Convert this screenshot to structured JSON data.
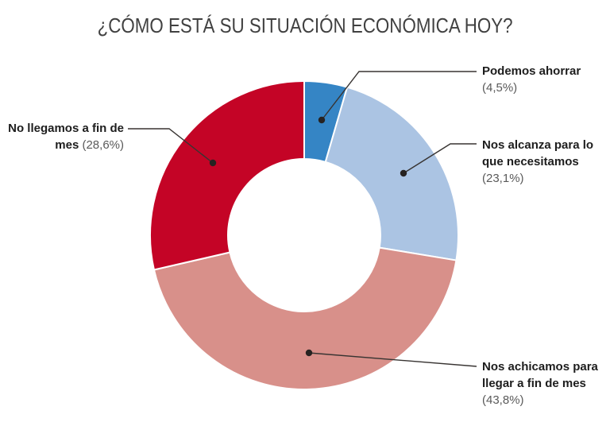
{
  "title": "¿CÓMO ESTÁ SU SITUACIÓN ECONÓMICA HOY?",
  "chart_data": {
    "type": "pie",
    "subtype": "donut",
    "title": "¿CÓMO ESTÁ SU SITUACIÓN ECONÓMICA HOY?",
    "direction": "clockwise",
    "start_angle_deg": 0,
    "inner_radius_ratio": 0.495,
    "legend_position": "callout-labels",
    "units": "%",
    "slices": [
      {
        "label": "Podemos ahorrar",
        "value": 4.5,
        "value_label": "(4,5%)",
        "color": "#3585c5"
      },
      {
        "label": "Nos alcanza para lo que necesitamos",
        "value": 23.1,
        "value_label": "(23,1%)",
        "color": "#abc4e3"
      },
      {
        "label": "Nos achicamos para llegar a fin de mes",
        "value": 43.8,
        "value_label": "(43,8%)",
        "color": "#d8908a"
      },
      {
        "label": "No llegamos a fin de mes",
        "value": 28.6,
        "value_label": "(28,6%)",
        "color": "#c40426"
      }
    ]
  },
  "colors": {
    "background": "#ffffff",
    "title_text": "#414141",
    "label_text": "#1d1d1d",
    "pct_text": "#5a5a5a",
    "leader_line": "#383432",
    "slice_separator": "#ffffff"
  }
}
